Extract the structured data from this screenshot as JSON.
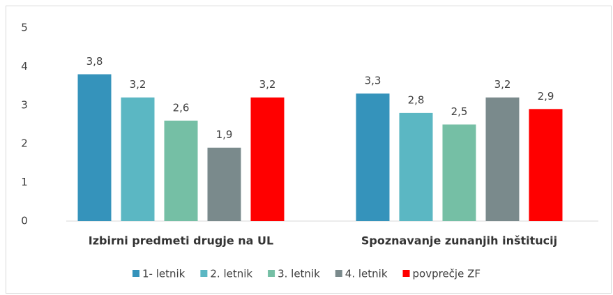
{
  "chart_data": {
    "type": "bar",
    "categories": [
      "Izbirni predmeti drugje na UL",
      "Spoznavanje zunanjih inštitucij"
    ],
    "series": [
      {
        "name": "1- letnik",
        "color": "#3593bb",
        "values": [
          3.8,
          3.3
        ],
        "value_labels": [
          "3,8",
          "3,3"
        ]
      },
      {
        "name": "2. letnik",
        "color": "#5bb7c3",
        "values": [
          3.2,
          2.8
        ],
        "value_labels": [
          "3,2",
          "2,8"
        ]
      },
      {
        "name": "3. letnik",
        "color": "#75bfa5",
        "values": [
          2.6,
          2.5
        ],
        "value_labels": [
          "2,6",
          "2,5"
        ]
      },
      {
        "name": "4. letnik",
        "color": "#7a8a8c",
        "values": [
          1.9,
          3.2
        ],
        "value_labels": [
          "1,9",
          "3,2"
        ]
      },
      {
        "name": "povprečje ZF",
        "color": "#ff0000",
        "values": [
          3.2,
          2.9
        ],
        "value_labels": [
          "3,2",
          "2,9"
        ]
      }
    ],
    "ylim": [
      0,
      5
    ],
    "yticks": [
      0,
      1,
      2,
      3,
      4,
      5
    ],
    "grid": false,
    "legend": "bottom"
  }
}
